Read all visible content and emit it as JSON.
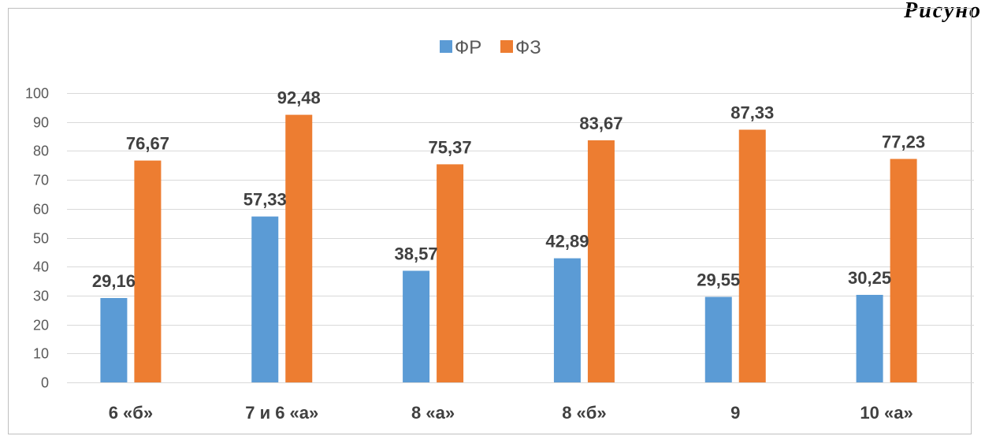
{
  "corner_text": "Рисуно",
  "chart_data": {
    "type": "bar",
    "categories": [
      "6 «б»",
      "7 и 6 «а»",
      "8 «а»",
      "8 «б»",
      "9",
      "10 «а»"
    ],
    "series": [
      {
        "name": "ФР",
        "values": [
          29.16,
          57.33,
          38.57,
          42.89,
          29.55,
          30.25
        ],
        "labels": [
          "29,16",
          "57,33",
          "38,57",
          "42,89",
          "29,55",
          "30,25"
        ],
        "color": "#5B9BD5"
      },
      {
        "name": "ФЗ",
        "values": [
          76.67,
          92.48,
          75.37,
          83.67,
          87.33,
          77.23
        ],
        "labels": [
          "76,67",
          "92,48",
          "75,37",
          "83,67",
          "87,33",
          "77,23"
        ],
        "color": "#ED7D31"
      }
    ],
    "ylim": [
      0,
      100
    ],
    "yticks": [
      0,
      10,
      20,
      30,
      40,
      50,
      60,
      70,
      80,
      90,
      100
    ],
    "ytick_labels": [
      "0",
      "10",
      "20",
      "30",
      "40",
      "50",
      "60",
      "70",
      "80",
      "90",
      "100"
    ],
    "grid": true,
    "legend_position": "top-center",
    "title": "",
    "xlabel": "",
    "ylabel": ""
  }
}
